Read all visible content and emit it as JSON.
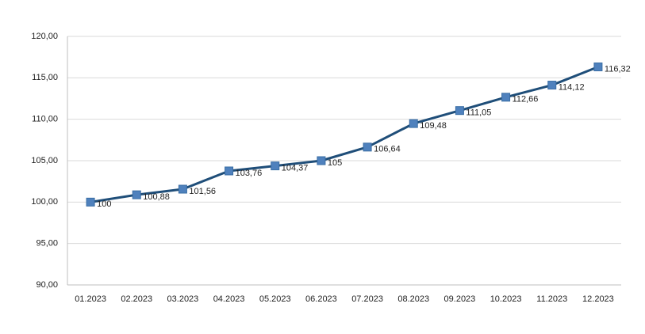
{
  "chart_data": {
    "type": "line",
    "categories": [
      "01.2023",
      "02.2023",
      "03.2023",
      "04.2023",
      "05.2023",
      "06.2023",
      "07.2023",
      "08.2023",
      "09.2023",
      "10.2023",
      "11.2023",
      "12.2023"
    ],
    "values": [
      100,
      100.88,
      101.56,
      103.76,
      104.37,
      105,
      106.64,
      109.48,
      111.05,
      112.66,
      114.12,
      116.32
    ],
    "value_labels": [
      "100",
      "100,88",
      "101,56",
      "103,76",
      "104,37",
      "105",
      "106,64",
      "109,48",
      "111,05",
      "112,66",
      "114,12",
      "116,32"
    ],
    "color": "#1f4e79",
    "marker_color": "#4f81bd",
    "ylim": [
      90,
      120
    ],
    "yticks": [
      {
        "value": 90,
        "label": "90,00"
      },
      {
        "value": 95,
        "label": "95,00"
      },
      {
        "value": 100,
        "label": "100,00"
      },
      {
        "value": 105,
        "label": "105,00"
      },
      {
        "value": 110,
        "label": "110,00"
      },
      {
        "value": 115,
        "label": "115,00"
      },
      {
        "value": 120,
        "label": "120,00"
      }
    ],
    "grid": true
  }
}
